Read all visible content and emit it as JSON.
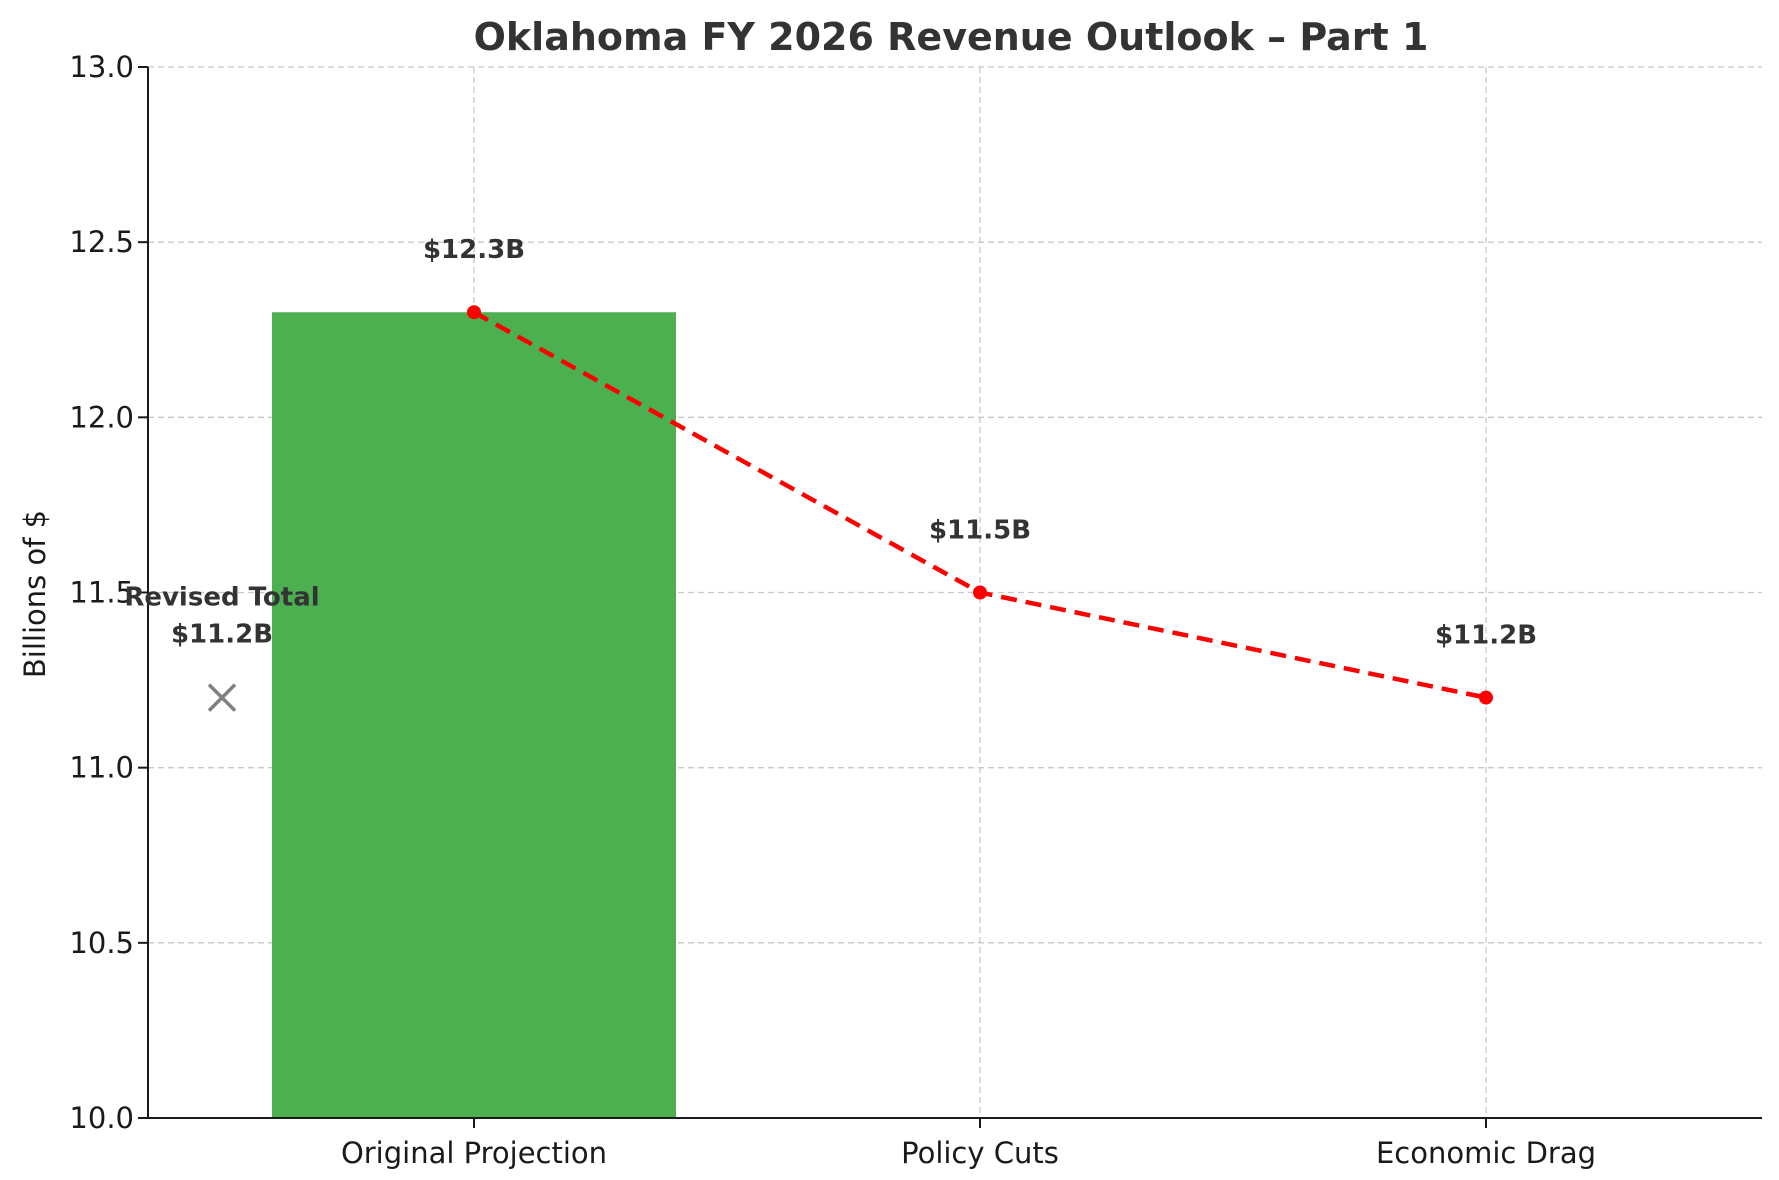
{
  "chart_data": {
    "type": "bar",
    "title": "Oklahoma FY 2026 Revenue Outlook – Part 1",
    "xlabel": "",
    "ylabel": "Billions of $",
    "ylim": [
      10.0,
      13.0
    ],
    "yticks": [
      10.0,
      10.5,
      11.0,
      11.5,
      12.0,
      12.5,
      13.0
    ],
    "ytick_labels": [
      "10.0",
      "10.5",
      "11.0",
      "11.5",
      "12.0",
      "12.5",
      "13.0"
    ],
    "categories": [
      "Original Projection",
      "Policy Cuts",
      "Economic Drag"
    ],
    "grid": true,
    "bars": [
      {
        "category": "Original Projection",
        "value": 12.3,
        "color": "#4caf50"
      }
    ],
    "line": {
      "values": [
        12.3,
        11.5,
        11.2
      ],
      "labels": [
        "$12.3B",
        "$11.5B",
        "$11.2B"
      ],
      "color": "#ff0000",
      "style": "dashed"
    },
    "annotation": {
      "label_line1": "Revised Total",
      "label_line2": "$11.2B",
      "value": 11.2,
      "marker": "x",
      "color": "#808080"
    }
  }
}
